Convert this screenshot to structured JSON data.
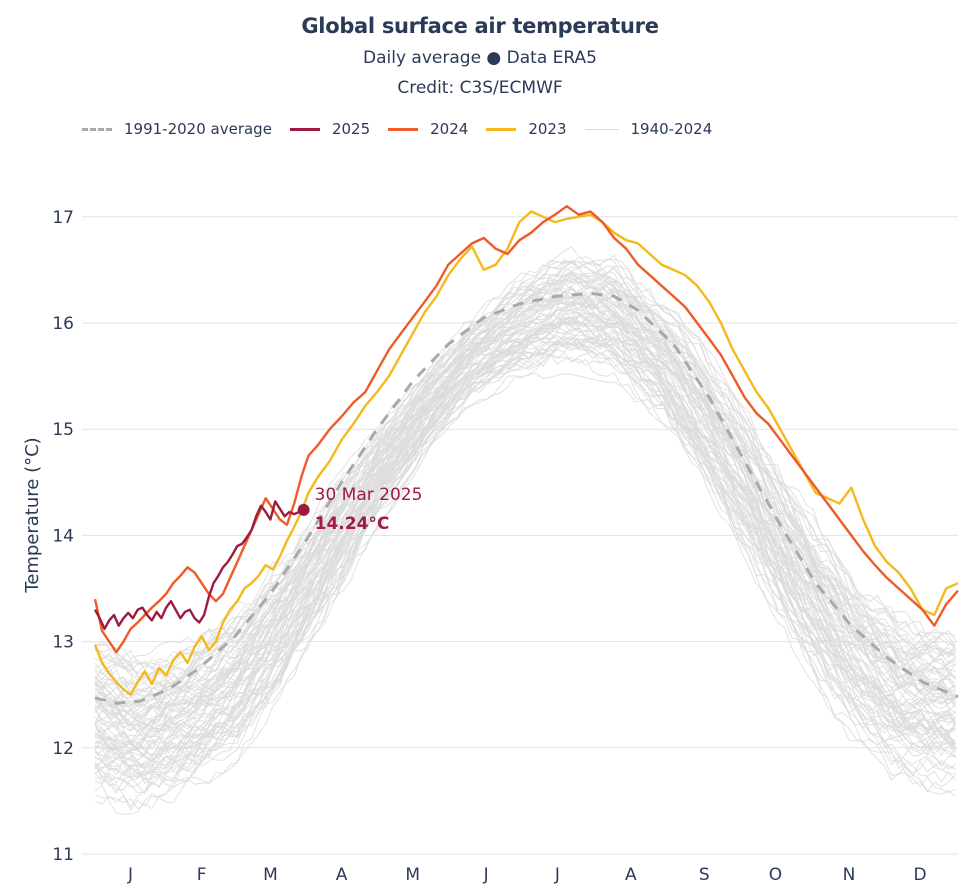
{
  "header": {
    "title": "Global surface air temperature",
    "subtitle": "Daily average ● Data ERA5",
    "credit": "Credit: C3S/ECMWF"
  },
  "legend": [
    {
      "label": "1991-2020 average",
      "style": "dashed",
      "color": "#a9a9a9"
    },
    {
      "label": "2025",
      "style": "solid",
      "color": "#9e1b3f"
    },
    {
      "label": "2024",
      "style": "solid",
      "color": "#f05a28"
    },
    {
      "label": "2023",
      "style": "solid",
      "color": "#f5b91e"
    },
    {
      "label": "1940-2024",
      "style": "thin",
      "color": "#dcdcdc"
    }
  ],
  "annotation": {
    "date": "30 Mar 2025",
    "value": "14.24°C",
    "day_of_year": 89,
    "temperature": 14.24
  },
  "chart_data": {
    "type": "line",
    "title": "Global surface air temperature",
    "subtitle": "Daily average ● Data ERA5",
    "xlabel": "",
    "ylabel": "Temperature (°C)",
    "ylim": [
      11,
      17.3
    ],
    "yticks": [
      11,
      12,
      13,
      14,
      15,
      16,
      17
    ],
    "xlim": [
      1,
      365
    ],
    "xticks": [
      {
        "label": "J",
        "day": 16
      },
      {
        "label": "F",
        "day": 46
      },
      {
        "label": "M",
        "day": 75
      },
      {
        "label": "A",
        "day": 105
      },
      {
        "label": "M",
        "day": 135
      },
      {
        "label": "J",
        "day": 166
      },
      {
        "label": "J",
        "day": 196
      },
      {
        "label": "A",
        "day": 227
      },
      {
        "label": "S",
        "day": 258
      },
      {
        "label": "O",
        "day": 288
      },
      {
        "label": "N",
        "day": 319
      },
      {
        "label": "D",
        "day": 349
      }
    ],
    "grid": "horizontal",
    "legend_position": "top",
    "series": [
      {
        "name": "1991-2020 average",
        "color": "#a9a9a9",
        "style": "dashed",
        "x": [
          1,
          10,
          20,
          32,
          45,
          60,
          75,
          90,
          105,
          120,
          135,
          150,
          165,
          180,
          195,
          210,
          220,
          230,
          245,
          260,
          275,
          290,
          305,
          320,
          335,
          350,
          365
        ],
        "y": [
          12.47,
          12.42,
          12.44,
          12.55,
          12.75,
          13.05,
          13.45,
          13.95,
          14.5,
          15.0,
          15.45,
          15.8,
          16.05,
          16.18,
          16.25,
          16.28,
          16.25,
          16.12,
          15.8,
          15.3,
          14.7,
          14.1,
          13.55,
          13.15,
          12.85,
          12.62,
          12.48
        ]
      },
      {
        "name": "2025",
        "color": "#9e1b3f",
        "style": "solid",
        "x": [
          1,
          3,
          5,
          7,
          9,
          11,
          13,
          15,
          17,
          19,
          21,
          23,
          25,
          27,
          29,
          31,
          33,
          35,
          37,
          39,
          41,
          43,
          45,
          47,
          49,
          51,
          53,
          55,
          57,
          59,
          61,
          63,
          65,
          67,
          69,
          71,
          73,
          75,
          77,
          79,
          81,
          83,
          85,
          87,
          89
        ],
        "y": [
          13.3,
          13.22,
          13.12,
          13.2,
          13.25,
          13.15,
          13.22,
          13.27,
          13.22,
          13.3,
          13.32,
          13.25,
          13.2,
          13.28,
          13.22,
          13.32,
          13.38,
          13.3,
          13.22,
          13.28,
          13.3,
          13.22,
          13.18,
          13.25,
          13.42,
          13.55,
          13.62,
          13.7,
          13.75,
          13.82,
          13.9,
          13.92,
          13.98,
          14.05,
          14.18,
          14.28,
          14.22,
          14.15,
          14.32,
          14.25,
          14.18,
          14.22,
          14.2,
          14.22,
          14.24
        ]
      },
      {
        "name": "2024",
        "color": "#f05a28",
        "style": "solid",
        "x": [
          1,
          4,
          7,
          10,
          13,
          16,
          19,
          22,
          25,
          28,
          31,
          34,
          37,
          40,
          43,
          46,
          49,
          52,
          55,
          58,
          61,
          64,
          67,
          70,
          73,
          76,
          79,
          82,
          85,
          88,
          91,
          95,
          100,
          105,
          110,
          115,
          120,
          125,
          130,
          135,
          140,
          145,
          150,
          155,
          160,
          165,
          170,
          175,
          180,
          185,
          190,
          195,
          200,
          205,
          210,
          215,
          220,
          225,
          230,
          235,
          240,
          245,
          250,
          255,
          260,
          265,
          270,
          275,
          280,
          285,
          290,
          295,
          300,
          305,
          310,
          315,
          320,
          325,
          330,
          335,
          340,
          345,
          350,
          355,
          360,
          365
        ],
        "y": [
          13.4,
          13.1,
          13.0,
          12.9,
          13.0,
          13.12,
          13.18,
          13.25,
          13.32,
          13.38,
          13.45,
          13.55,
          13.62,
          13.7,
          13.65,
          13.55,
          13.45,
          13.38,
          13.45,
          13.6,
          13.75,
          13.9,
          14.05,
          14.2,
          14.35,
          14.25,
          14.15,
          14.1,
          14.3,
          14.55,
          14.75,
          14.85,
          15.0,
          15.12,
          15.25,
          15.35,
          15.55,
          15.75,
          15.9,
          16.05,
          16.2,
          16.35,
          16.55,
          16.65,
          16.75,
          16.8,
          16.7,
          16.65,
          16.78,
          16.85,
          16.95,
          17.02,
          17.1,
          17.02,
          17.05,
          16.95,
          16.8,
          16.7,
          16.55,
          16.45,
          16.35,
          16.25,
          16.15,
          16.0,
          15.85,
          15.7,
          15.5,
          15.3,
          15.15,
          15.05,
          14.9,
          14.75,
          14.6,
          14.45,
          14.3,
          14.15,
          14.0,
          13.85,
          13.72,
          13.6,
          13.5,
          13.4,
          13.3,
          13.15,
          13.35,
          13.48
        ]
      },
      {
        "name": "2023",
        "color": "#f5b91e",
        "style": "solid",
        "x": [
          1,
          4,
          7,
          10,
          13,
          16,
          19,
          22,
          25,
          28,
          31,
          34,
          37,
          40,
          43,
          46,
          49,
          52,
          55,
          58,
          61,
          64,
          67,
          70,
          73,
          76,
          79,
          82,
          85,
          88,
          91,
          95,
          100,
          105,
          110,
          115,
          120,
          125,
          130,
          135,
          140,
          145,
          150,
          155,
          160,
          165,
          170,
          175,
          180,
          185,
          190,
          195,
          200,
          205,
          210,
          215,
          220,
          225,
          230,
          235,
          240,
          245,
          250,
          255,
          260,
          265,
          270,
          275,
          280,
          285,
          290,
          295,
          300,
          305,
          310,
          315,
          320,
          325,
          330,
          335,
          340,
          345,
          350,
          355,
          360,
          365
        ],
        "y": [
          12.97,
          12.8,
          12.7,
          12.62,
          12.55,
          12.5,
          12.62,
          12.72,
          12.6,
          12.75,
          12.68,
          12.82,
          12.9,
          12.8,
          12.95,
          13.05,
          12.92,
          13.0,
          13.18,
          13.3,
          13.38,
          13.5,
          13.55,
          13.62,
          13.72,
          13.68,
          13.8,
          13.95,
          14.08,
          14.22,
          14.4,
          14.55,
          14.7,
          14.9,
          15.05,
          15.22,
          15.35,
          15.5,
          15.7,
          15.9,
          16.1,
          16.25,
          16.45,
          16.6,
          16.72,
          16.5,
          16.55,
          16.7,
          16.95,
          17.05,
          17.0,
          16.95,
          16.98,
          17.0,
          17.02,
          16.95,
          16.85,
          16.78,
          16.75,
          16.65,
          16.55,
          16.5,
          16.45,
          16.35,
          16.2,
          16.0,
          15.75,
          15.55,
          15.35,
          15.2,
          15.0,
          14.8,
          14.6,
          14.4,
          14.35,
          14.3,
          14.45,
          14.15,
          13.9,
          13.75,
          13.65,
          13.5,
          13.3,
          13.25,
          13.5,
          13.55
        ]
      }
    ],
    "background_series": {
      "name": "1940-2024",
      "color": "#dcdcdc",
      "description": "Individual daily curves for every year 1940-2024, spanning roughly 11.3-13.9 °C in January and 15.2-16.9 °C in July",
      "envelope_low": {
        "x": [
          1,
          20,
          40,
          60,
          80,
          100,
          120,
          140,
          160,
          180,
          200,
          220,
          240,
          260,
          280,
          300,
          320,
          340,
          365
        ],
        "y": [
          11.4,
          11.3,
          11.5,
          11.8,
          12.4,
          13.2,
          14.0,
          14.7,
          15.2,
          15.4,
          15.5,
          15.4,
          15.0,
          14.3,
          13.5,
          12.7,
          12.0,
          11.6,
          11.5
        ]
      },
      "envelope_high": {
        "x": [
          1,
          20,
          40,
          60,
          80,
          100,
          120,
          140,
          160,
          180,
          200,
          220,
          240,
          260,
          280,
          300,
          320,
          340,
          365
        ],
        "y": [
          13.2,
          13.0,
          13.1,
          13.4,
          13.9,
          14.5,
          15.1,
          15.6,
          16.1,
          16.5,
          16.8,
          16.7,
          16.3,
          15.8,
          15.1,
          14.4,
          13.8,
          13.4,
          13.2
        ]
      }
    }
  }
}
